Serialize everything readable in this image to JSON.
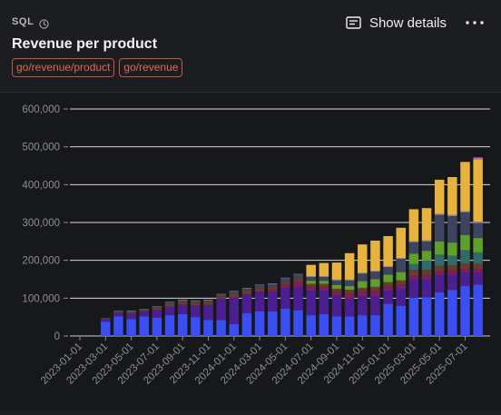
{
  "header": {
    "source_label": "SQL",
    "title": "Revenue per product",
    "tags": [
      "go/revenue/product",
      "go/revenue"
    ],
    "show_details_label": "Show details"
  },
  "icons": {
    "clock": "clock-icon",
    "details": "details-icon",
    "more": "more-icon"
  },
  "chart_data": {
    "type": "bar",
    "stacked": true,
    "title": "",
    "xlabel": "",
    "ylabel": "",
    "ylim": [
      0,
      600000
    ],
    "yticks": [
      "0",
      "100,000",
      "200,000",
      "300,000",
      "400,000",
      "500,000",
      "600,000"
    ],
    "grid": true,
    "legend": "none",
    "x_tick_labels": [
      "2023-01-01",
      "2023-03-01",
      "2023-05-01",
      "2023-07-01",
      "2023-09-01",
      "2023-11-01",
      "2024-01-01",
      "2024-03-01",
      "2024-05-01",
      "2024-07-01",
      "2024-09-01",
      "2024-11-01",
      "2025-01-01",
      "2025-03-01",
      "2025-05-01",
      "2025-07-01"
    ],
    "categories": [
      "2023-01",
      "2023-02",
      "2023-03",
      "2023-04",
      "2023-05",
      "2023-06",
      "2023-07",
      "2023-08",
      "2023-09",
      "2023-10",
      "2023-11",
      "2023-12",
      "2024-01",
      "2024-02",
      "2024-03",
      "2024-04",
      "2024-05",
      "2024-06",
      "2024-07",
      "2024-08",
      "2024-09",
      "2024-10",
      "2024-11",
      "2024-12",
      "2025-01",
      "2025-02",
      "2025-03",
      "2025-04",
      "2025-05",
      "2025-06",
      "2025-07",
      "2025-08"
    ],
    "series": [
      {
        "color": "#3a4ff2",
        "values": [
          0,
          0,
          38000,
          52000,
          45000,
          52000,
          48000,
          55000,
          58000,
          50000,
          42000,
          42000,
          32000,
          60000,
          65000,
          65000,
          72000,
          68000,
          55000,
          58000,
          52000,
          52000,
          55000,
          55000,
          85000,
          80000,
          100000,
          102000,
          115000,
          122000,
          132000,
          136000
        ]
      },
      {
        "color": "#4b1f91",
        "values": [
          0,
          0,
          6000,
          9000,
          14000,
          12000,
          20000,
          22000,
          25000,
          30000,
          40000,
          55000,
          70000,
          50000,
          52000,
          52000,
          55000,
          60000,
          65000,
          62000,
          55000,
          45000,
          50000,
          50000,
          35000,
          45000,
          50000,
          48000,
          45000,
          40000,
          35000,
          30000
        ]
      },
      {
        "color": "#7a1f62",
        "values": [
          0,
          0,
          0,
          0,
          0,
          0,
          0,
          0,
          0,
          0,
          0,
          0,
          0,
          0,
          0,
          5000,
          8000,
          15000,
          10000,
          10000,
          10000,
          15000,
          12000,
          15000,
          10000,
          10000,
          10000,
          10000,
          10000,
          10000,
          10000,
          10000
        ]
      },
      {
        "color": "#6b3a2a",
        "values": [
          0,
          0,
          2000,
          2000,
          4000,
          3000,
          6000,
          8000,
          8000,
          8000,
          8000,
          8000,
          10000,
          10000,
          10000,
          8000,
          8000,
          10000,
          8000,
          8000,
          8000,
          10000,
          10000,
          10000,
          12000,
          12000,
          15000,
          15000,
          15000,
          15000,
          15000,
          15000
        ]
      },
      {
        "color": "#2f6b6b",
        "values": [
          0,
          0,
          0,
          0,
          0,
          0,
          0,
          0,
          0,
          0,
          0,
          0,
          0,
          0,
          0,
          0,
          0,
          0,
          0,
          0,
          0,
          0,
          0,
          0,
          0,
          0,
          15000,
          25000,
          30000,
          25000,
          35000,
          30000
        ]
      },
      {
        "color": "#5fa02a",
        "values": [
          0,
          0,
          0,
          0,
          0,
          0,
          0,
          0,
          0,
          0,
          0,
          0,
          0,
          0,
          0,
          0,
          0,
          0,
          8000,
          8000,
          10000,
          10000,
          18000,
          20000,
          20000,
          22000,
          28000,
          25000,
          35000,
          35000,
          40000,
          38000
        ]
      },
      {
        "color": "#3c4460",
        "values": [
          0,
          0,
          2000,
          2000,
          3000,
          3000,
          3000,
          4000,
          4000,
          5000,
          5000,
          5000,
          6000,
          6000,
          8000,
          8000,
          10000,
          10000,
          10000,
          10000,
          12000,
          15000,
          20000,
          20000,
          20000,
          35000,
          30000,
          25000,
          70000,
          70000,
          60000,
          40000
        ]
      },
      {
        "color": "#8a8f98",
        "values": [
          0,
          0,
          0,
          1000,
          1000,
          1000,
          1000,
          1000,
          1000,
          1000,
          1000,
          1000,
          1000,
          1000,
          1000,
          1000,
          1000,
          1000,
          2000,
          2000,
          2000,
          2000,
          2000,
          2000,
          2000,
          2000,
          2000,
          3000,
          3000,
          3000,
          3000,
          3000
        ]
      },
      {
        "color": "#e8b23e",
        "values": [
          0,
          0,
          0,
          0,
          0,
          0,
          0,
          0,
          0,
          0,
          0,
          0,
          0,
          0,
          0,
          0,
          0,
          0,
          30000,
          35000,
          45000,
          70000,
          75000,
          80000,
          80000,
          80000,
          85000,
          85000,
          90000,
          100000,
          130000,
          165000
        ]
      },
      {
        "color": "#b45fc9",
        "values": [
          0,
          0,
          0,
          0,
          0,
          0,
          0,
          0,
          0,
          0,
          0,
          0,
          0,
          0,
          0,
          0,
          0,
          0,
          0,
          0,
          0,
          0,
          0,
          0,
          0,
          0,
          0,
          0,
          0,
          0,
          0,
          5000
        ]
      }
    ]
  }
}
